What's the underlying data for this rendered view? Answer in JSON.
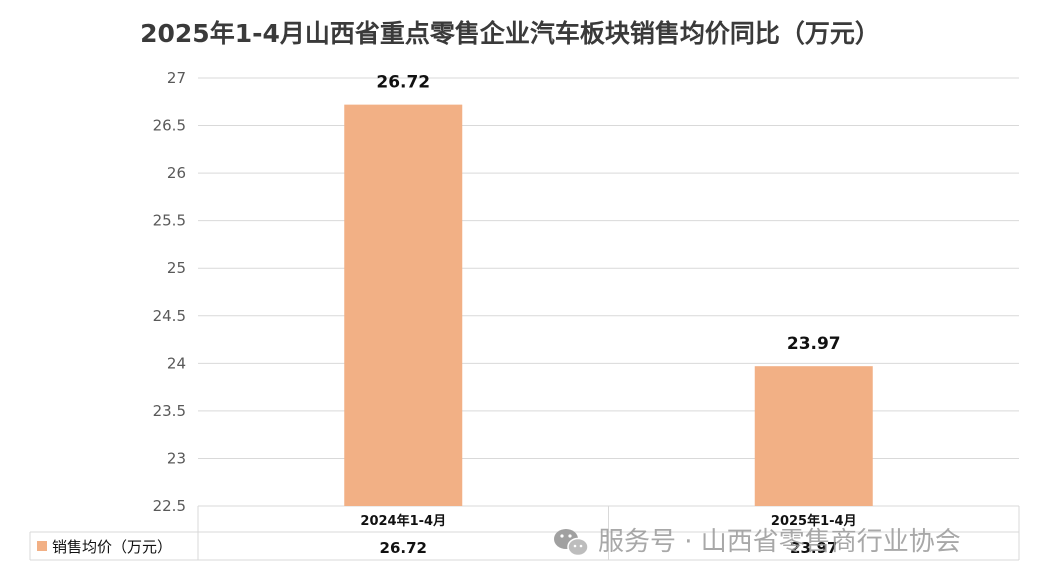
{
  "chart_data": {
    "type": "bar",
    "title": "2025年1-4月山西省重点零售企业汽车板块销售均价同比（万元）",
    "categories": [
      "2024年1-4月",
      "2025年1-4月"
    ],
    "series": [
      {
        "name": "销售均价（万元）",
        "values": [
          26.72,
          23.97
        ],
        "color": "#f2b085"
      }
    ],
    "data_labels": [
      "26.72",
      "23.97"
    ],
    "ylim": [
      22.5,
      27
    ],
    "y_ticks": [
      "22.5",
      "23",
      "23.5",
      "24",
      "24.5",
      "25",
      "25.5",
      "26",
      "26.5",
      "27"
    ],
    "grid": true,
    "legend": "data-table"
  },
  "watermark": {
    "icon": "wechat-icon",
    "text": "服务号 · 山西省零售商行业协会"
  },
  "colors": {
    "bar": "#f2b085",
    "grid": "#d9d9d9",
    "text": "#111111"
  }
}
